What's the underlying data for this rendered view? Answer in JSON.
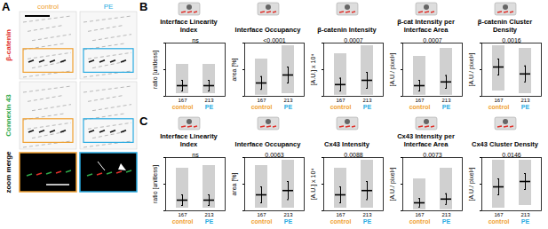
{
  "panel_a": {
    "label": "A",
    "columns": [
      {
        "label": "control",
        "color": "#f0a030"
      },
      {
        "label": "PE",
        "color": "#29abe2"
      }
    ],
    "rows": [
      {
        "label": "β-catenin",
        "color": "#e0302a"
      },
      {
        "label": "Connexin 43",
        "color": "#2ea84a"
      },
      {
        "label": "zoom merge",
        "color": "#000000"
      }
    ]
  },
  "chart_data": [
    {
      "panel": "B",
      "type": "scatter",
      "title": "Interface Linearity Index",
      "ylabel": "ratio [unitless]",
      "annotation": "ns",
      "categories": [
        "control",
        "PE"
      ],
      "n_labels": [
        "167",
        "213"
      ],
      "ylim": [
        0,
        1
      ],
      "yticks": [
        0,
        0.5,
        1
      ],
      "tick_labels": false,
      "series": [
        {
          "name": "control",
          "color": "#f0a030",
          "mean": 0.2,
          "sd": 0.1,
          "range": [
            0.05,
            0.6
          ]
        },
        {
          "name": "PE",
          "color": "#29abe2",
          "mean": 0.2,
          "sd": 0.1,
          "range": [
            0.05,
            0.6
          ]
        }
      ]
    },
    {
      "panel": "B",
      "type": "scatter",
      "title": "Interface Occupancy",
      "ylabel": "area [%]",
      "annotation": "<0.0001",
      "categories": [
        "control",
        "PE"
      ],
      "n_labels": [
        "167",
        "213"
      ],
      "ylim": [
        0,
        1
      ],
      "yticks": [
        0,
        0.5,
        1
      ],
      "tick_labels": false,
      "series": [
        {
          "name": "control",
          "color": "#f0a030",
          "mean": 0.25,
          "sd": 0.12,
          "range": [
            0.02,
            0.7
          ]
        },
        {
          "name": "PE",
          "color": "#29abe2",
          "mean": 0.4,
          "sd": 0.15,
          "range": [
            0.05,
            0.95
          ]
        }
      ]
    },
    {
      "panel": "B",
      "type": "scatter",
      "title": "β-catenin Intensity",
      "ylabel": "[A.U.] x 10⁴",
      "annotation": "0.0007",
      "categories": [
        "control",
        "PE"
      ],
      "n_labels": [
        "167",
        "213"
      ],
      "ylim": [
        0,
        1
      ],
      "yticks": [
        0,
        0.5,
        1
      ],
      "tick_labels": false,
      "series": [
        {
          "name": "control",
          "color": "#f0a030",
          "mean": 0.22,
          "sd": 0.12,
          "range": [
            0.02,
            0.8
          ]
        },
        {
          "name": "PE",
          "color": "#29abe2",
          "mean": 0.3,
          "sd": 0.15,
          "range": [
            0.02,
            0.95
          ]
        }
      ]
    },
    {
      "panel": "B",
      "type": "scatter",
      "title": "β-cat Intensity per Interface Area",
      "ylabel": "[A.U./ pixel²]",
      "annotation": "0.0007",
      "categories": [
        "control",
        "PE"
      ],
      "n_labels": [
        "167",
        "213"
      ],
      "ylim": [
        0,
        1
      ],
      "yticks": [
        0,
        0.5,
        1
      ],
      "tick_labels": false,
      "series": [
        {
          "name": "control",
          "color": "#f0a030",
          "mean": 0.2,
          "sd": 0.1,
          "range": [
            0.02,
            0.75
          ]
        },
        {
          "name": "PE",
          "color": "#29abe2",
          "mean": 0.27,
          "sd": 0.12,
          "range": [
            0.02,
            0.9
          ]
        }
      ]
    },
    {
      "panel": "B",
      "type": "scatter",
      "title": "β-catenin Cluster Density",
      "ylabel": "[A.U./ pixel²]",
      "annotation": "0.0016",
      "categories": [
        "control",
        "PE"
      ],
      "n_labels": [
        "167",
        "213"
      ],
      "ylim": [
        0,
        1
      ],
      "yticks": [
        0,
        0.5,
        1
      ],
      "tick_labels": false,
      "series": [
        {
          "name": "control",
          "color": "#f0a030",
          "mean": 0.55,
          "sd": 0.15,
          "range": [
            0.1,
            0.95
          ]
        },
        {
          "name": "PE",
          "color": "#29abe2",
          "mean": 0.42,
          "sd": 0.15,
          "range": [
            0.05,
            0.9
          ]
        }
      ]
    },
    {
      "panel": "C",
      "type": "scatter",
      "title": "Interface Linearity Index",
      "ylabel": "ratio [unitless]",
      "annotation": "ns",
      "categories": [
        "control",
        "PE"
      ],
      "n_labels": [
        "167",
        "213"
      ],
      "ylim": [
        0,
        1
      ],
      "yticks": [
        0,
        0.5,
        1
      ],
      "tick_labels": false,
      "series": [
        {
          "name": "control",
          "color": "#f0a030",
          "mean": 0.2,
          "sd": 0.1,
          "range": [
            0.05,
            0.8
          ]
        },
        {
          "name": "PE",
          "color": "#29abe2",
          "mean": 0.2,
          "sd": 0.1,
          "range": [
            0.05,
            0.85
          ]
        }
      ]
    },
    {
      "panel": "C",
      "type": "scatter",
      "title": "Interface Occupancy",
      "ylabel": "area [%]",
      "annotation": "0.0063",
      "categories": [
        "control",
        "PE"
      ],
      "n_labels": [
        "167",
        "213"
      ],
      "ylim": [
        0,
        1
      ],
      "yticks": [
        0,
        0.5,
        1
      ],
      "tick_labels": false,
      "series": [
        {
          "name": "control",
          "color": "#f0a030",
          "mean": 0.3,
          "sd": 0.15,
          "range": [
            0.05,
            0.85
          ]
        },
        {
          "name": "PE",
          "color": "#29abe2",
          "mean": 0.38,
          "sd": 0.17,
          "range": [
            0.05,
            0.95
          ]
        }
      ]
    },
    {
      "panel": "C",
      "type": "scatter",
      "title": "Cx43 Intensity",
      "ylabel": "[A.U.] x 10⁴",
      "annotation": "0.0088",
      "categories": [
        "control",
        "PE"
      ],
      "n_labels": [
        "167",
        "213"
      ],
      "ylim": [
        0,
        1
      ],
      "yticks": [
        0,
        0.5,
        1
      ],
      "tick_labels": false,
      "series": [
        {
          "name": "control",
          "color": "#f0a030",
          "mean": 0.3,
          "sd": 0.15,
          "range": [
            0.05,
            0.8
          ]
        },
        {
          "name": "PE",
          "color": "#29abe2",
          "mean": 0.38,
          "sd": 0.17,
          "range": [
            0.05,
            0.95
          ]
        }
      ]
    },
    {
      "panel": "C",
      "type": "scatter",
      "title": "Cx43 Intensity per Interface Area",
      "ylabel": "[A.U./ pixel²]",
      "annotation": "0.0073",
      "categories": [
        "control",
        "PE"
      ],
      "n_labels": [
        "167",
        "213"
      ],
      "ylim": [
        0,
        1
      ],
      "yticks": [
        0,
        0.5,
        1
      ],
      "tick_labels": false,
      "series": [
        {
          "name": "control",
          "color": "#f0a030",
          "mean": 0.15,
          "sd": 0.08,
          "range": [
            0.02,
            0.6
          ]
        },
        {
          "name": "PE",
          "color": "#29abe2",
          "mean": 0.22,
          "sd": 0.1,
          "range": [
            0.02,
            0.8
          ]
        }
      ]
    },
    {
      "panel": "C",
      "type": "scatter",
      "title": "Cx43 Cluster Density",
      "ylabel": "[A.U./ pixel²]",
      "annotation": "0.0146",
      "categories": [
        "control",
        "PE"
      ],
      "n_labels": [
        "167",
        "213"
      ],
      "ylim": [
        0,
        1
      ],
      "yticks": [
        0,
        0.5,
        1
      ],
      "tick_labels": false,
      "series": [
        {
          "name": "control",
          "color": "#f0a030",
          "mean": 0.45,
          "sd": 0.15,
          "range": [
            0.05,
            0.95
          ]
        },
        {
          "name": "PE",
          "color": "#29abe2",
          "mean": 0.55,
          "sd": 0.15,
          "range": [
            0.1,
            0.95
          ]
        }
      ]
    }
  ]
}
